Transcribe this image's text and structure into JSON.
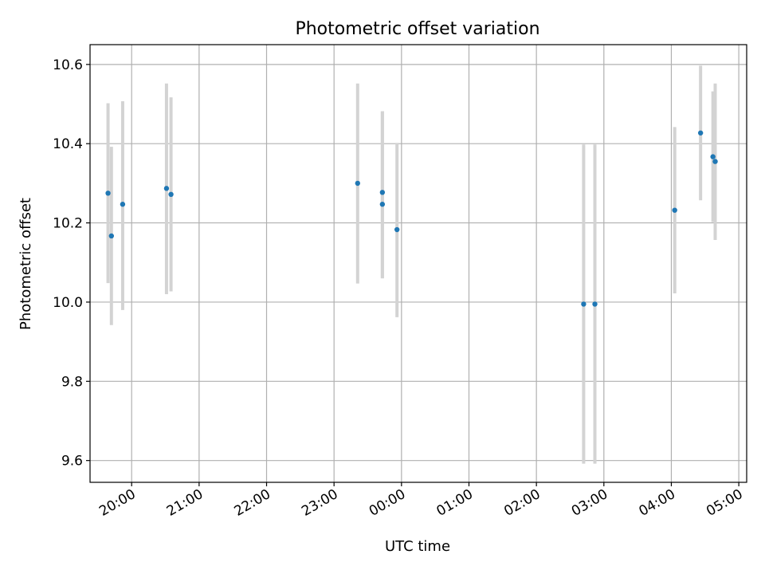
{
  "chart_data": {
    "type": "scatter",
    "title": "Photometric offset variation",
    "xlabel": "UTC time",
    "ylabel": "Photometric offset",
    "x_is_time": true,
    "x_tick_labels": [
      "20:00",
      "21:00",
      "22:00",
      "23:00",
      "00:00",
      "01:00",
      "02:00",
      "03:00",
      "04:00",
      "05:00"
    ],
    "xlim": [
      "19:23",
      "05:07"
    ],
    "ylim": [
      9.545,
      10.65
    ],
    "y_ticks": [
      9.6,
      9.8,
      10.0,
      10.2,
      10.4,
      10.6
    ],
    "y_tick_labels": [
      "9.6",
      "9.8",
      "10.0",
      "10.2",
      "10.4",
      "10.6"
    ],
    "grid": true,
    "errorbar_color": "#d3d3d3",
    "point_color": "#1f77b4",
    "points": [
      {
        "time": "19:39",
        "y": 10.275,
        "ylow": 10.048,
        "yhigh": 10.502
      },
      {
        "time": "19:42",
        "y": 10.167,
        "ylow": 9.942,
        "yhigh": 10.392
      },
      {
        "time": "19:52",
        "y": 10.247,
        "ylow": 9.98,
        "yhigh": 10.507
      },
      {
        "time": "20:31",
        "y": 10.287,
        "ylow": 10.02,
        "yhigh": 10.552
      },
      {
        "time": "20:35",
        "y": 10.272,
        "ylow": 10.027,
        "yhigh": 10.517
      },
      {
        "time": "23:21",
        "y": 10.3,
        "ylow": 10.047,
        "yhigh": 10.552
      },
      {
        "time": "23:43",
        "y": 10.277,
        "ylow": 10.06,
        "yhigh": 10.482
      },
      {
        "time": "23:43",
        "y": 10.247,
        "ylow": 10.06,
        "yhigh": 10.482
      },
      {
        "time": "23:56",
        "y": 10.183,
        "ylow": 9.962,
        "yhigh": 10.402
      },
      {
        "time": "02:42",
        "y": 9.995,
        "ylow": 9.592,
        "yhigh": 10.398
      },
      {
        "time": "02:52",
        "y": 9.995,
        "ylow": 9.592,
        "yhigh": 10.398
      },
      {
        "time": "04:03",
        "y": 10.232,
        "ylow": 10.022,
        "yhigh": 10.442
      },
      {
        "time": "04:26",
        "y": 10.427,
        "ylow": 10.257,
        "yhigh": 10.597
      },
      {
        "time": "04:37",
        "y": 10.367,
        "ylow": 10.202,
        "yhigh": 10.532
      },
      {
        "time": "04:39",
        "y": 10.355,
        "ylow": 10.157,
        "yhigh": 10.552
      }
    ]
  }
}
